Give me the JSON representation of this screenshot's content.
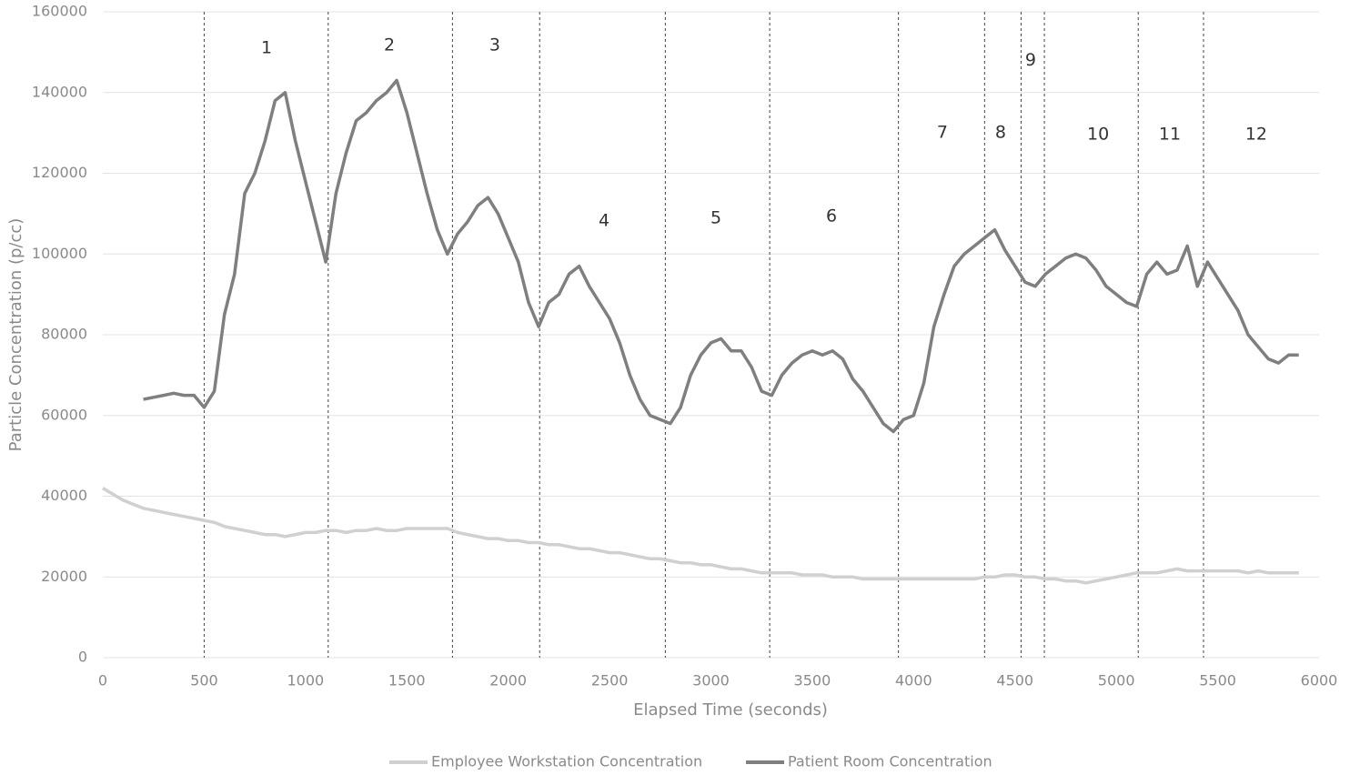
{
  "chart_data": {
    "type": "line",
    "x_label": "Elapsed Time (seconds)",
    "y_label": "Particle Concentration (p/cc)",
    "x": [
      0,
      50,
      100,
      150,
      200,
      250,
      300,
      350,
      400,
      450,
      500,
      550,
      600,
      650,
      700,
      750,
      800,
      850,
      900,
      950,
      1000,
      1050,
      1100,
      1150,
      1200,
      1250,
      1300,
      1350,
      1400,
      1450,
      1500,
      1550,
      1600,
      1650,
      1700,
      1750,
      1800,
      1850,
      1900,
      1950,
      2000,
      2050,
      2100,
      2150,
      2200,
      2250,
      2300,
      2350,
      2400,
      2450,
      2500,
      2550,
      2600,
      2650,
      2700,
      2750,
      2800,
      2850,
      2900,
      2950,
      3000,
      3050,
      3100,
      3150,
      3200,
      3250,
      3300,
      3350,
      3400,
      3450,
      3500,
      3550,
      3600,
      3650,
      3700,
      3750,
      3800,
      3850,
      3900,
      3950,
      4000,
      4050,
      4100,
      4150,
      4200,
      4250,
      4300,
      4350,
      4400,
      4450,
      4500,
      4550,
      4600,
      4650,
      4700,
      4750,
      4800,
      4850,
      4900,
      4950,
      5000,
      5050,
      5100,
      5150,
      5200,
      5250,
      5300,
      5350,
      5400,
      5450,
      5500,
      5550,
      5600,
      5650,
      5700,
      5750,
      5800,
      5850,
      5900
    ],
    "series": [
      {
        "name": "Employee Workstation Concentration",
        "color": "#d0d0d0",
        "values": [
          42000,
          40500,
          39000,
          38000,
          37000,
          36500,
          36000,
          35500,
          35000,
          34500,
          34000,
          33500,
          32500,
          32000,
          31500,
          31000,
          30500,
          30500,
          30000,
          30500,
          31000,
          31000,
          31500,
          31500,
          31000,
          31500,
          31500,
          32000,
          31500,
          31500,
          32000,
          32000,
          32000,
          32000,
          32000,
          31000,
          30500,
          30000,
          29500,
          29500,
          29000,
          29000,
          28500,
          28500,
          28000,
          28000,
          27500,
          27000,
          27000,
          26500,
          26000,
          26000,
          25500,
          25000,
          24500,
          24500,
          24000,
          23500,
          23500,
          23000,
          23000,
          22500,
          22000,
          22000,
          21500,
          21000,
          21000,
          21000,
          21000,
          20500,
          20500,
          20500,
          20000,
          20000,
          20000,
          19500,
          19500,
          19500,
          19500,
          19500,
          19500,
          19500,
          19500,
          19500,
          19500,
          19500,
          19500,
          20000,
          20000,
          20500,
          20500,
          20000,
          20000,
          19500,
          19500,
          19000,
          19000,
          18500,
          19000,
          19500,
          20000,
          20500,
          21000,
          21000,
          21000,
          21500,
          22000,
          21500,
          21500,
          21500,
          21500,
          21500,
          21500,
          21000,
          21500,
          21000,
          21000,
          21000,
          21000
        ]
      },
      {
        "name": "Patient Room Concentration",
        "color": "#7f7f7f",
        "values": [
          null,
          null,
          null,
          null,
          64000,
          64500,
          65000,
          65500,
          65000,
          65000,
          62000,
          66000,
          85000,
          95000,
          115000,
          120000,
          128000,
          138000,
          140000,
          128000,
          118000,
          108000,
          98000,
          115000,
          125000,
          133000,
          135000,
          138000,
          140000,
          143000,
          135000,
          125000,
          115000,
          106000,
          100000,
          105000,
          108000,
          112000,
          114000,
          110000,
          104000,
          98000,
          88000,
          82000,
          88000,
          90000,
          95000,
          97000,
          92000,
          88000,
          84000,
          78000,
          70000,
          64000,
          60000,
          59000,
          58000,
          62000,
          70000,
          75000,
          78000,
          79000,
          76000,
          76000,
          72000,
          66000,
          65000,
          70000,
          73000,
          75000,
          76000,
          75000,
          76000,
          74000,
          69000,
          66000,
          62000,
          58000,
          56000,
          59000,
          60000,
          68000,
          82000,
          90000,
          97000,
          100000,
          102000,
          104000,
          106000,
          101000,
          97000,
          93000,
          92000,
          95000,
          97000,
          99000,
          100000,
          99000,
          96000,
          92000,
          90000,
          88000,
          87000,
          95000,
          98000,
          95000,
          96000,
          102000,
          92000,
          98000,
          94000,
          90000,
          86000,
          80000,
          77000,
          74000,
          73000,
          75000,
          75000
        ]
      }
    ],
    "phase_lines": [
      500,
      1112,
      1725,
      2155,
      2775,
      3290,
      3925,
      4350,
      4530,
      4645,
      5108,
      5430
    ],
    "annotations": [
      {
        "text": "1",
        "x": 808,
        "y": 151000
      },
      {
        "text": "2",
        "x": 1414,
        "y": 151700
      },
      {
        "text": "3",
        "x": 1934,
        "y": 151700
      },
      {
        "text": "4",
        "x": 2473,
        "y": 108200
      },
      {
        "text": "5",
        "x": 3025,
        "y": 108800
      },
      {
        "text": "6",
        "x": 3595,
        "y": 109300
      },
      {
        "text": "7",
        "x": 4142,
        "y": 130000
      },
      {
        "text": "8",
        "x": 4429,
        "y": 130000
      },
      {
        "text": "9",
        "x": 4577,
        "y": 148000
      },
      {
        "text": "10",
        "x": 4910,
        "y": 129600
      },
      {
        "text": "11",
        "x": 5264,
        "y": 129600
      },
      {
        "text": "12",
        "x": 5690,
        "y": 129600
      }
    ],
    "xlim": [
      0,
      6000
    ],
    "xticks": [
      0,
      500,
      1000,
      1500,
      2000,
      2500,
      3000,
      3500,
      4000,
      4500,
      5000,
      5500,
      6000
    ],
    "ylim": [
      0,
      160000
    ],
    "yticks": [
      0,
      20000,
      40000,
      60000,
      80000,
      100000,
      120000,
      140000,
      160000
    ],
    "grid": true,
    "legend": "bottom"
  }
}
